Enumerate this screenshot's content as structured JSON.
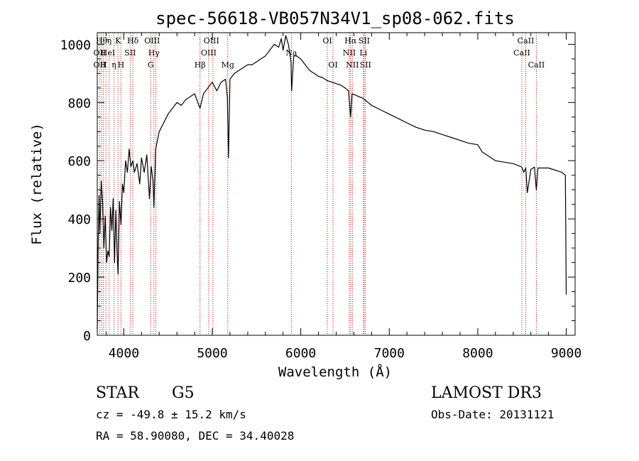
{
  "chart_data": {
    "type": "line",
    "title": "spec-56618-VB057N34V1_sp08-062.fits",
    "xlabel": "Wavelength (Å)",
    "ylabel": "Flux (relative)",
    "xlim": [
      3700,
      9100
    ],
    "ylim": [
      0,
      1040
    ],
    "xticks": [
      4000,
      5000,
      6000,
      7000,
      8000,
      9000
    ],
    "yticks": [
      0,
      200,
      400,
      600,
      800,
      1000
    ],
    "grid": false,
    "series": [
      {
        "name": "flux",
        "x": [
          3700,
          3710,
          3720,
          3730,
          3745,
          3760,
          3775,
          3790,
          3805,
          3820,
          3835,
          3850,
          3865,
          3880,
          3895,
          3910,
          3925,
          3935,
          3950,
          3968,
          3985,
          4000,
          4020,
          4040,
          4060,
          4080,
          4102,
          4120,
          4150,
          4180,
          4200,
          4230,
          4260,
          4290,
          4310,
          4330,
          4340,
          4360,
          4400,
          4450,
          4500,
          4550,
          4600,
          4650,
          4700,
          4750,
          4800,
          4861,
          4900,
          4950,
          5000,
          5050,
          5100,
          5150,
          5170,
          5183,
          5200,
          5250,
          5300,
          5350,
          5400,
          5450,
          5500,
          5550,
          5600,
          5650,
          5700,
          5750,
          5780,
          5800,
          5830,
          5860,
          5890,
          5896,
          5920,
          5950,
          6000,
          6050,
          6100,
          6150,
          6200,
          6250,
          6300,
          6350,
          6400,
          6450,
          6500,
          6540,
          6563,
          6580,
          6620,
          6700,
          6800,
          6900,
          7000,
          7100,
          7200,
          7300,
          7400,
          7500,
          7600,
          7700,
          7800,
          7900,
          8000,
          8050,
          8100,
          8150,
          8200,
          8300,
          8400,
          8498,
          8520,
          8542,
          8560,
          8600,
          8640,
          8662,
          8680,
          8750,
          8800,
          8850,
          8900,
          8950,
          8990,
          9000
        ],
        "values": [
          20,
          300,
          480,
          350,
          530,
          460,
          300,
          410,
          250,
          290,
          270,
          440,
          360,
          470,
          250,
          430,
          280,
          210,
          460,
          380,
          520,
          490,
          600,
          560,
          640,
          580,
          600,
          560,
          590,
          520,
          610,
          560,
          620,
          470,
          580,
          530,
          440,
          640,
          700,
          730,
          760,
          780,
          800,
          790,
          810,
          820,
          830,
          780,
          830,
          850,
          870,
          840,
          870,
          880,
          820,
          610,
          880,
          900,
          910,
          920,
          930,
          930,
          940,
          950,
          960,
          980,
          1000,
          990,
          1020,
          980,
          1030,
          1000,
          940,
          840,
          960,
          960,
          950,
          930,
          910,
          900,
          890,
          885,
          875,
          870,
          865,
          860,
          850,
          840,
          750,
          830,
          825,
          815,
          790,
          775,
          760,
          745,
          730,
          715,
          705,
          700,
          690,
          680,
          670,
          660,
          655,
          630,
          620,
          610,
          600,
          595,
          590,
          578,
          560,
          575,
          490,
          570,
          578,
          500,
          575,
          575,
          575,
          570,
          565,
          560,
          550,
          140
        ]
      }
    ],
    "line_labels": [
      {
        "wl": 3750,
        "row": 0,
        "text": "Hθ"
      },
      {
        "wl": 3727,
        "row": 1,
        "text": "OII"
      },
      {
        "wl": 3727,
        "row": 2,
        "text": "OII"
      },
      {
        "wl": 3770,
        "row": 2,
        "text": "H"
      },
      {
        "wl": 3835,
        "row": 0,
        "text": "η"
      },
      {
        "wl": 3820,
        "row": 1,
        "text": "HeI"
      },
      {
        "wl": 3889,
        "row": 2,
        "text": "η"
      },
      {
        "wl": 3934,
        "row": 0,
        "text": "K"
      },
      {
        "wl": 3968,
        "row": 2,
        "text": "H"
      },
      {
        "wl": 4072,
        "row": 1,
        "text": "SII"
      },
      {
        "wl": 4102,
        "row": 0,
        "text": "Hδ"
      },
      {
        "wl": 4320,
        "row": 0,
        "text": "OIII"
      },
      {
        "wl": 4340,
        "row": 1,
        "text": "Hγ"
      },
      {
        "wl": 4304,
        "row": 2,
        "text": "G"
      },
      {
        "wl": 4861,
        "row": 2,
        "text": "Hβ"
      },
      {
        "wl": 4990,
        "row": 0,
        "text": "OIII"
      },
      {
        "wl": 4959,
        "row": 1,
        "text": "OIII"
      },
      {
        "wl": 5175,
        "row": 2,
        "text": "Mg"
      },
      {
        "wl": 5893,
        "row": 1,
        "text": "Na"
      },
      {
        "wl": 6300,
        "row": 0,
        "text": "OI"
      },
      {
        "wl": 6364,
        "row": 2,
        "text": "OI"
      },
      {
        "wl": 6563,
        "row": 0,
        "text": "Hα"
      },
      {
        "wl": 6548,
        "row": 1,
        "text": "NII"
      },
      {
        "wl": 6583,
        "row": 2,
        "text": "NII"
      },
      {
        "wl": 6716,
        "row": 0,
        "text": "SII"
      },
      {
        "wl": 6707,
        "row": 1,
        "text": "Li"
      },
      {
        "wl": 6731,
        "row": 2,
        "text": "SII"
      },
      {
        "wl": 8542,
        "row": 0,
        "text": "CaII"
      },
      {
        "wl": 8498,
        "row": 1,
        "text": "CaII"
      },
      {
        "wl": 8662,
        "row": 2,
        "text": "CaII"
      }
    ],
    "line_markers": [
      3727,
      3750,
      3770,
      3798,
      3835,
      3889,
      3934,
      3968,
      4072,
      4102,
      4304,
      4340,
      4363,
      4861,
      4959,
      5007,
      5175,
      5893,
      6300,
      6364,
      6548,
      6563,
      6583,
      6707,
      6716,
      6731,
      8498,
      8542,
      8662
    ]
  },
  "footer": {
    "class_label": "STAR",
    "subclass_label": "G5",
    "survey_label": "LAMOST DR3",
    "cz_text": "cz = -49.8 ± 15.2 km/s",
    "obs_date_text": "Obs-Date: 20131121",
    "coords_text": "RA =  58.90080, DEC =  34.40028"
  },
  "colors": {
    "spectrum": "#000000",
    "markers": "#cc0000",
    "axes": "#000000"
  }
}
